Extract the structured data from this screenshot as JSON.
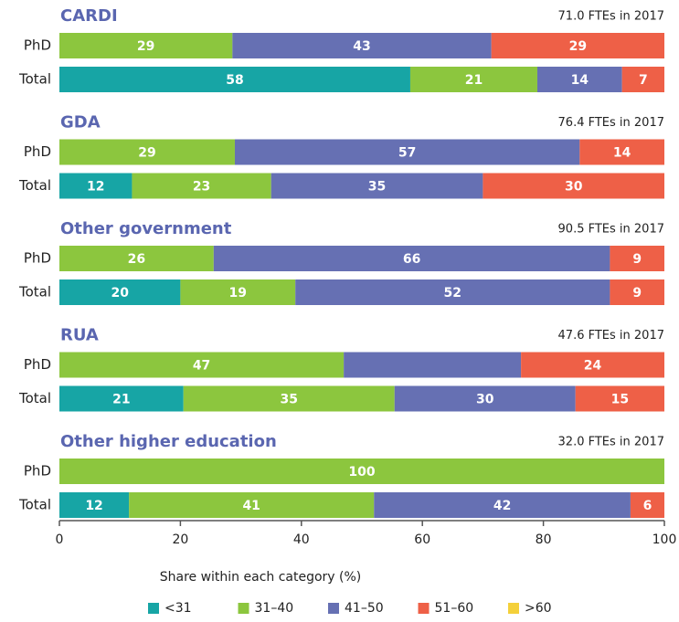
{
  "chart_data": {
    "type": "bar",
    "stacked": true,
    "groups": [
      {
        "title": "CARDI",
        "note": "71.0 FTEs in 2017"
      },
      {
        "title": "GDA",
        "note": "76.4 FTEs in 2017"
      },
      {
        "title": "Other government",
        "note": "90.5 FTEs in 2017"
      },
      {
        "title": "RUA",
        "note": "47.6 FTEs in 2017"
      },
      {
        "title": "Other higher education",
        "note": "32.0 FTEs in 2017"
      }
    ],
    "categories": [
      "PhD",
      "Total",
      "PhD",
      "Total",
      "PhD",
      "Total",
      "PhD",
      "Total",
      "PhD",
      "Total"
    ],
    "series": [
      {
        "name": "<31",
        "color": "#17a5a5",
        "values": [
          0,
          58,
          0,
          12,
          0,
          20,
          0,
          20.5,
          0,
          11.5
        ],
        "value_labels": [
          null,
          "58",
          null,
          "12",
          null,
          "20",
          null,
          "21",
          null,
          "12"
        ]
      },
      {
        "name": "31–40",
        "color": "#8cc63e",
        "values": [
          28.6,
          21,
          29,
          23,
          25.5,
          19,
          47,
          34.9,
          100,
          40.5
        ],
        "value_labels": [
          "29",
          "21",
          "29",
          "23",
          "26",
          "19",
          "47",
          "35",
          "100",
          "41"
        ]
      },
      {
        "name": "41–50",
        "color": "#6670b3",
        "values": [
          42.8,
          14,
          57,
          35,
          65.5,
          52,
          29.3,
          29.9,
          0,
          42.4
        ],
        "value_labels": [
          "43",
          "14",
          "57",
          "35",
          "66",
          "52",
          null,
          "30",
          null,
          "42"
        ]
      },
      {
        "name": "51–60",
        "color": "#ee6047",
        "values": [
          28.6,
          7,
          14,
          30,
          9,
          9,
          23.7,
          14.7,
          0,
          5.6
        ],
        "value_labels": [
          "29",
          "7",
          "14",
          "30",
          "9",
          "9",
          "24",
          "15",
          null,
          "6"
        ]
      },
      {
        "name": ">60",
        "color": "#f4d03a",
        "values": [
          0,
          0,
          0,
          0,
          0,
          0,
          0,
          0,
          0,
          0
        ],
        "value_labels": [
          null,
          null,
          null,
          null,
          null,
          null,
          null,
          null,
          null,
          null
        ]
      }
    ],
    "xlim": [
      0,
      100
    ],
    "xticks": [
      0,
      20,
      40,
      60,
      80,
      100
    ],
    "xlabel": "Share within each category (%)",
    "legend": "bottom"
  }
}
